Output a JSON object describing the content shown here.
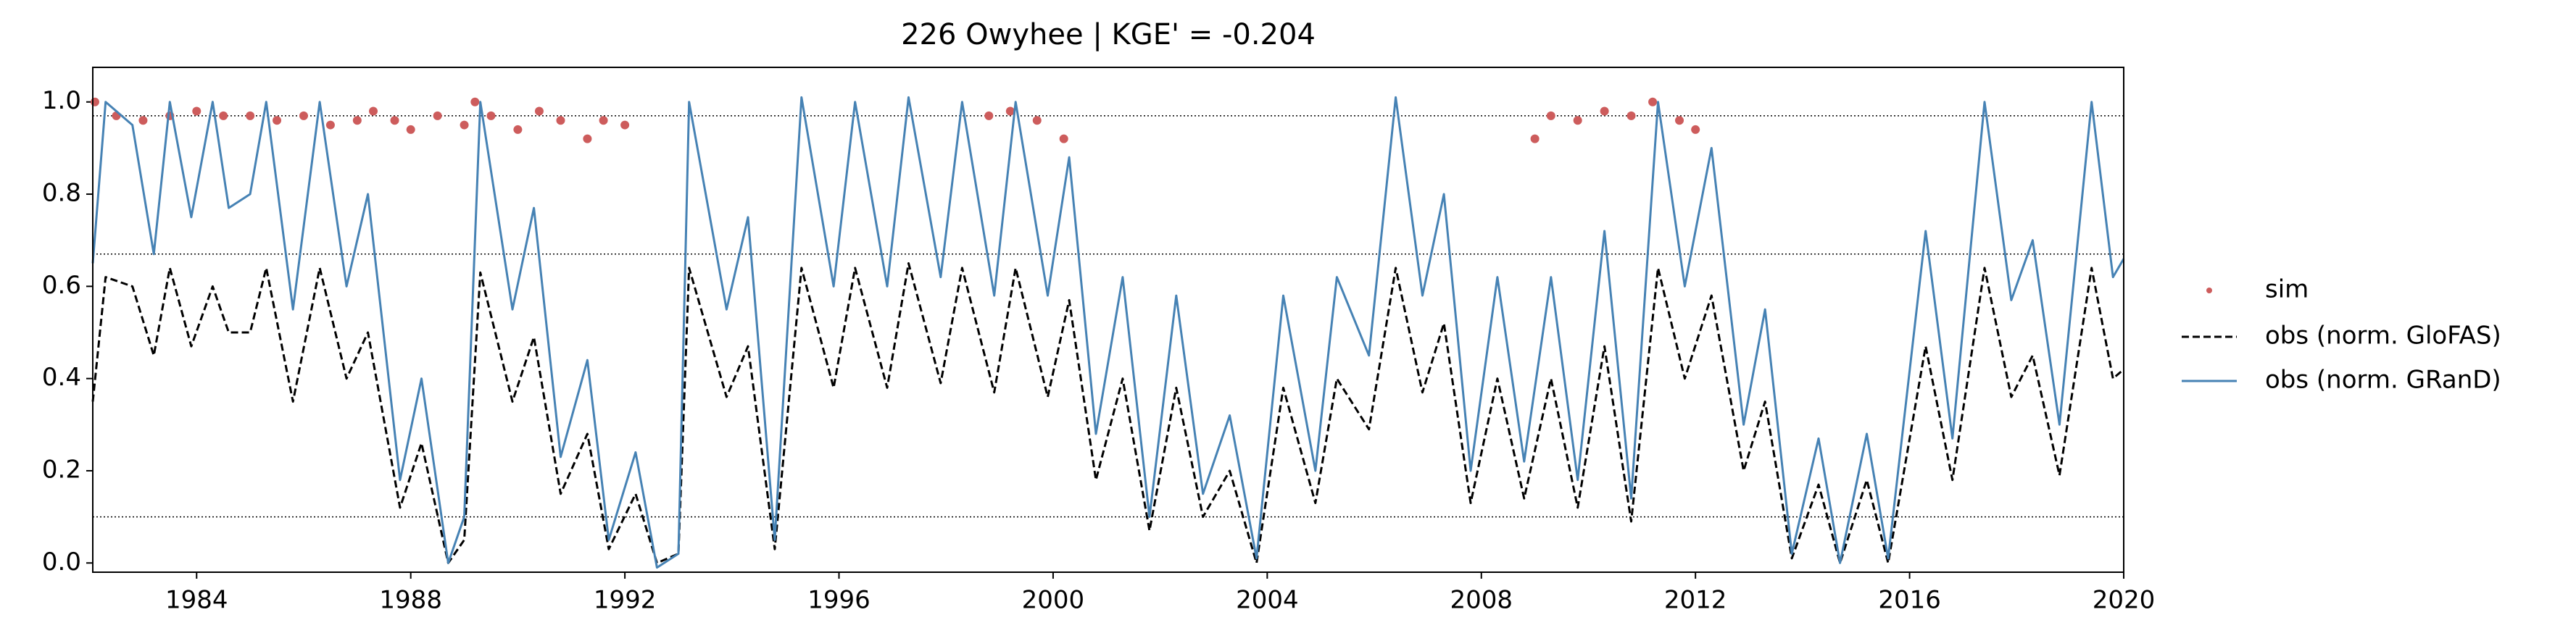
{
  "chart_data": {
    "type": "line",
    "title": "226  Owyhee | KGE' = -0.204",
    "xlim": [
      1982.06,
      2020
    ],
    "xticks": [
      1984,
      1988,
      1992,
      1996,
      2000,
      2004,
      2008,
      2012,
      2016,
      2020
    ],
    "ylim": [
      -0.02,
      1.075
    ],
    "yticks": [
      {
        "value": 0,
        "label": "0.0"
      },
      0.2,
      0.4,
      0.6,
      0.8,
      {
        "value": 1,
        "label": "1.0"
      }
    ],
    "hlines": [
      0.97,
      0.67,
      0.1
    ],
    "x": [
      1982.06,
      1982.3,
      1982.8,
      1983.2,
      1983.5,
      1983.9,
      1984.3,
      1984.6,
      1985.0,
      1985.3,
      1985.8,
      1986.3,
      1986.8,
      1987.2,
      1987.8,
      1988.2,
      1988.7,
      1989.0,
      1989.3,
      1989.9,
      1990.3,
      1990.8,
      1991.3,
      1991.7,
      1992.2,
      1992.6,
      1993.0,
      1993.2,
      1993.9,
      1994.3,
      1994.8,
      1995.3,
      1995.9,
      1996.3,
      1996.9,
      1997.3,
      1997.9,
      1998.3,
      1998.9,
      1999.3,
      1999.9,
      2000.3,
      2000.8,
      2001.3,
      2001.8,
      2002.3,
      2002.8,
      2003.3,
      2003.8,
      2004.3,
      2004.9,
      2005.3,
      2005.9,
      2006.4,
      2006.9,
      2007.3,
      2007.8,
      2008.3,
      2008.8,
      2009.3,
      2009.8,
      2010.3,
      2010.8,
      2011.3,
      2011.8,
      2012.3,
      2012.9,
      2013.3,
      2013.8,
      2014.3,
      2014.7,
      2015.2,
      2015.6,
      2016.3,
      2016.8,
      2017.4,
      2017.9,
      2018.3,
      2018.8,
      2019.4,
      2019.8,
      2020.0
    ],
    "series": [
      {
        "name": "sim",
        "style": "scatter",
        "color": "#cd5c5c",
        "x": [
          1982.1,
          1982.5,
          1983.0,
          1983.5,
          1984.0,
          1984.5,
          1985.0,
          1985.5,
          1986.0,
          1986.5,
          1987.0,
          1987.3,
          1987.7,
          1988.0,
          1988.5,
          1989.0,
          1989.2,
          1989.5,
          1990.0,
          1990.4,
          1990.8,
          1991.3,
          1991.6,
          1992.0,
          1998.8,
          1999.2,
          1999.7,
          2000.2,
          2009.0,
          2009.3,
          2009.8,
          2010.3,
          2010.8,
          2011.2,
          2011.7,
          2012.0
        ],
        "values": [
          1.0,
          0.97,
          0.96,
          0.97,
          0.98,
          0.97,
          0.97,
          0.96,
          0.97,
          0.95,
          0.96,
          0.98,
          0.96,
          0.94,
          0.97,
          0.95,
          1.0,
          0.97,
          0.94,
          0.98,
          0.96,
          0.92,
          0.96,
          0.95,
          0.97,
          0.98,
          0.96,
          0.92,
          0.92,
          0.97,
          0.96,
          0.98,
          0.97,
          1.0,
          0.96,
          0.94
        ]
      },
      {
        "name": "obs (norm. GloFAS)",
        "style": "dashed",
        "color": "#000000",
        "values": [
          0.35,
          0.62,
          0.6,
          0.45,
          0.64,
          0.47,
          0.6,
          0.5,
          0.5,
          0.64,
          0.35,
          0.64,
          0.4,
          0.5,
          0.12,
          0.26,
          0.0,
          0.05,
          0.63,
          0.35,
          0.49,
          0.15,
          0.28,
          0.03,
          0.15,
          0.0,
          0.02,
          0.64,
          0.36,
          0.47,
          0.03,
          0.64,
          0.38,
          0.64,
          0.38,
          0.65,
          0.39,
          0.64,
          0.37,
          0.64,
          0.36,
          0.57,
          0.18,
          0.4,
          0.07,
          0.38,
          0.1,
          0.2,
          0.0,
          0.38,
          0.13,
          0.4,
          0.29,
          0.64,
          0.37,
          0.52,
          0.13,
          0.4,
          0.14,
          0.4,
          0.12,
          0.47,
          0.09,
          0.64,
          0.4,
          0.58,
          0.2,
          0.35,
          0.01,
          0.17,
          0.0,
          0.18,
          0.0,
          0.47,
          0.18,
          0.64,
          0.36,
          0.45,
          0.19,
          0.64,
          0.4,
          0.42
        ]
      },
      {
        "name": "obs (norm. GRanD)",
        "style": "solid",
        "color": "#4682b4",
        "values": [
          0.65,
          1.0,
          0.95,
          0.67,
          1.0,
          0.75,
          1.0,
          0.77,
          0.8,
          1.0,
          0.55,
          1.0,
          0.6,
          0.8,
          0.18,
          0.4,
          0.0,
          0.1,
          1.0,
          0.55,
          0.77,
          0.23,
          0.44,
          0.05,
          0.24,
          -0.01,
          0.02,
          1.0,
          0.55,
          0.75,
          0.05,
          1.01,
          0.6,
          1.0,
          0.6,
          1.01,
          0.62,
          1.0,
          0.58,
          1.0,
          0.58,
          0.88,
          0.28,
          0.62,
          0.1,
          0.58,
          0.15,
          0.32,
          0.01,
          0.58,
          0.2,
          0.62,
          0.45,
          1.01,
          0.58,
          0.8,
          0.2,
          0.62,
          0.22,
          0.62,
          0.18,
          0.72,
          0.14,
          1.0,
          0.6,
          0.9,
          0.3,
          0.55,
          0.02,
          0.27,
          0.0,
          0.28,
          0.01,
          0.72,
          0.27,
          1.0,
          0.57,
          0.7,
          0.3,
          1.0,
          0.62,
          0.66
        ]
      }
    ]
  }
}
